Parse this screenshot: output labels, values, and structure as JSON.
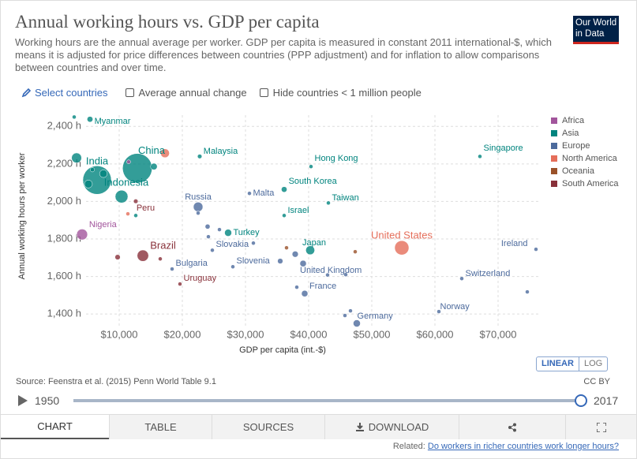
{
  "header": {
    "title": "Annual working hours vs. GDP per capita",
    "subtitle": "Working hours are the annual average per worker. GDP per capita is measured in constant 2011 international-$, which means it is adjusted for price differences between countries (PPP adjustment) and for inflation to allow comparisons between countries and over time.",
    "logo": [
      "Our World",
      "in Data"
    ]
  },
  "controls": {
    "select": "Select countries",
    "checkboxes": [
      "Average annual change",
      "Hide countries < 1 million people"
    ]
  },
  "chart_data": {
    "type": "scatter",
    "x_label": "GDP per capita (int.-$)",
    "y_label": "Annual working hours per worker",
    "xlim": [
      2500,
      76500
    ],
    "ylim": [
      1325,
      2460
    ],
    "xticks": [
      {
        "value": 10000,
        "label": "$10,000"
      },
      {
        "value": 20000,
        "label": "$20,000"
      },
      {
        "value": 30000,
        "label": "$30,000"
      },
      {
        "value": 40000,
        "label": "$40,000"
      },
      {
        "value": 50000,
        "label": "$50,000"
      },
      {
        "value": 60000,
        "label": "$60,000"
      },
      {
        "value": 70000,
        "label": "$70,000"
      }
    ],
    "yticks": [
      {
        "value": 1400,
        "label": "1,400 h"
      },
      {
        "value": 1600,
        "label": "1,600 h"
      },
      {
        "value": 1800,
        "label": "1,800 h"
      },
      {
        "value": 2000,
        "label": "2,000 h"
      },
      {
        "value": 2200,
        "label": "2,200 h"
      },
      {
        "value": 2400,
        "label": "2,400 h"
      }
    ],
    "grid": true,
    "legend_position": "right",
    "series": [
      {
        "name": "Africa",
        "color": "#a2559c",
        "x": [
          4125,
          11500
        ],
        "values": [
          1824,
          2211
        ],
        "sizes": [
          190,
          10
        ],
        "labels": [
          "Nigeria",
          null
        ]
      },
      {
        "name": "Asia",
        "color": "#00847e",
        "x": [
          5375,
          2875,
          3250,
          6500,
          5750,
          7500,
          5125,
          12875,
          15500,
          22750,
          10375,
          40375,
          67125,
          36125,
          43125,
          36125,
          27250,
          40250,
          12625
        ],
        "values": [
          2438,
          2450,
          2232,
          2114,
          2169,
          2148,
          2093,
          2177,
          2186,
          2240,
          2026,
          2186,
          2240,
          2064,
          1992,
          1925,
          1833,
          1740,
          1925
        ],
        "sizes": [
          53,
          20,
          160,
          1300,
          30,
          95,
          100,
          1400,
          70,
          31,
          260,
          7,
          6,
          51,
          24,
          8,
          80,
          127,
          21
        ],
        "labels": [
          "Myanmar",
          null,
          null,
          "India",
          null,
          null,
          null,
          "China",
          null,
          "Malaysia",
          "Indonesia",
          "Hong Kong",
          "Singapore",
          "South Korea",
          "Taiwan",
          "Israel",
          "Turkey",
          "Japan",
          null
        ]
      },
      {
        "name": "Europe",
        "color": "#4c6a9c",
        "x": [
          22500,
          22500,
          30625,
          24750,
          18375,
          28000,
          39125,
          39375,
          47625,
          64250,
          60625,
          76000,
          24000,
          24125,
          25875,
          31250,
          35500,
          37875,
          38125,
          45875,
          46625,
          45750,
          74625,
          43000
        ],
        "values": [
          1971,
          1938,
          2043,
          1740,
          1640,
          1652,
          1669,
          1509,
          1350,
          1589,
          1413,
          1745,
          1866,
          1812,
          1850,
          1778,
          1682,
          1719,
          1543,
          1610,
          1417,
          1392,
          1518,
          1608
        ],
        "sizes": [
          145,
          5,
          0.5,
          5,
          7,
          2,
          66,
          65,
          82,
          8.5,
          5.3,
          4.8,
          38,
          10,
          10,
          5,
          46,
          60,
          11,
          9,
          17,
          6,
          0.6,
          9
        ],
        "labels": [
          "Russia",
          null,
          "Malta",
          "Slovakia",
          "Bulgaria",
          "Slovenia",
          "United Kingdom",
          "France",
          "Germany",
          "Switzerland",
          "Norway",
          "Ireland",
          null,
          null,
          null,
          null,
          null,
          null,
          null,
          null,
          null,
          null,
          null,
          null
        ]
      },
      {
        "name": "North America",
        "color": "#e56e5a",
        "x": [
          54750,
          17250,
          11375
        ],
        "values": [
          1753,
          2257,
          1934
        ],
        "sizes": [
          325,
          125,
          5
        ],
        "labels": [
          "United States",
          null,
          null
        ]
      },
      {
        "name": "Oceania",
        "color": "#9a5129",
        "x": [
          36500,
          47375
        ],
        "values": [
          1753,
          1732
        ],
        "sizes": [
          4.8,
          24
        ],
        "labels": [
          null,
          null
        ]
      },
      {
        "name": "South America",
        "color": "#883039",
        "x": [
          12625,
          13750,
          19625,
          16500,
          9750
        ],
        "values": [
          2001,
          1711,
          1560,
          1694,
          1703
        ],
        "sizes": [
          32,
          209,
          3.5,
          18,
          44
        ],
        "labels": [
          "Peru",
          "Brazil",
          "Uruguay",
          null,
          null
        ]
      }
    ]
  },
  "footer": {
    "source": "Source: Feenstra et al. (2015) Penn World Table 9.1",
    "license": "CC BY",
    "scale_buttons": [
      "LINEAR",
      "LOG"
    ],
    "timeline": [
      1950,
      2017
    ],
    "tabs": [
      "CHART",
      "TABLE",
      "SOURCES",
      "DOWNLOAD"
    ],
    "related_label": "Related:",
    "related_link": "Do workers in richer countries work longer hours?"
  }
}
